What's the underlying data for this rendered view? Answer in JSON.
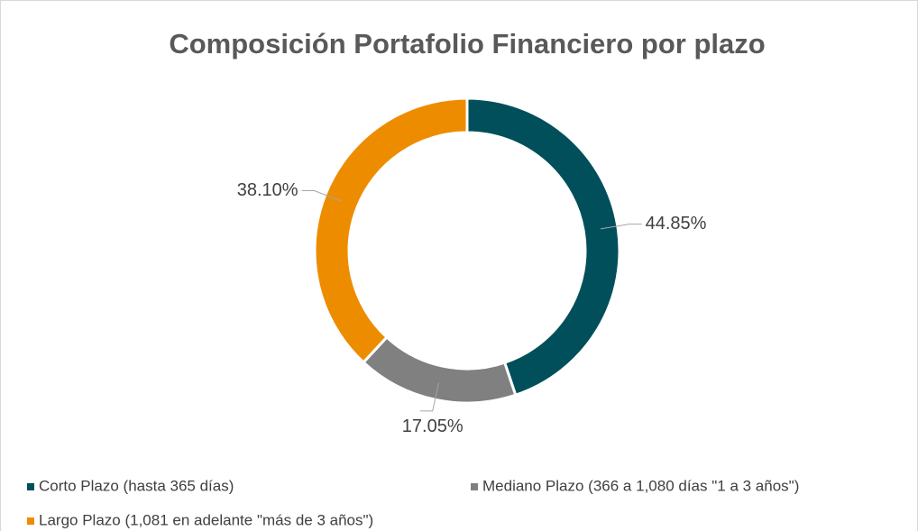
{
  "chart_data": {
    "type": "donut",
    "title": "Composición Portafolio Financiero por plazo",
    "categories": [
      "Corto Plazo (hasta 365 días)",
      "Mediano Plazo (366 a 1,080 días \"1 a 3 años\")",
      "Largo Plazo (1,081 en adelante \"más de 3 años\")"
    ],
    "values": [
      44.85,
      17.05,
      38.1
    ],
    "value_labels": [
      "44.85%",
      "17.05%",
      "38.10%"
    ],
    "colors": [
      "#004f5b",
      "#808080",
      "#ee8c00"
    ],
    "legend": "bottom"
  }
}
